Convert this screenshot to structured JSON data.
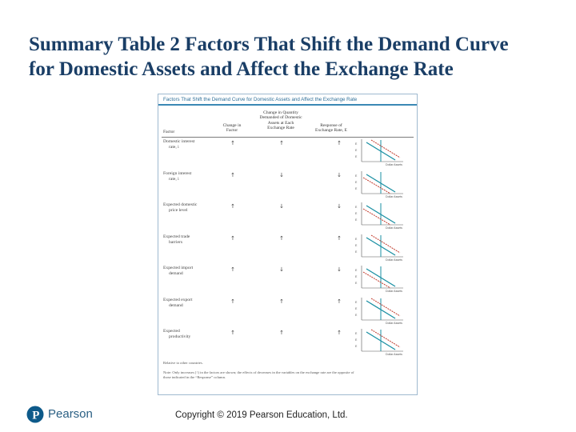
{
  "slide": {
    "title_line1": "Summary Table 2 Factors That Shift the Demand Curve",
    "title_line2": "for Domestic Assets and Affect the Exchange Rate"
  },
  "table": {
    "header_bar": "Factors That Shift the Demand Curve for Domestic Assets and Affect the Exchange Rate",
    "columns": {
      "factor": "Factor",
      "change_line1": "Change in",
      "change_line2": "Factor",
      "quantity_line1": "Change in Quantity",
      "quantity_line2": "Demanded of Domestic",
      "quantity_line3": "Assets at Each",
      "quantity_line4": "Exchange Rate",
      "response_line1": "Response of",
      "response_line2": "Exchange Rate, E"
    },
    "rows": [
      {
        "factor_line1": "Domestic interest",
        "factor_line2": "rate, i",
        "change": "↑",
        "quantity": "↑",
        "response": "↑"
      },
      {
        "factor_line1": "Foreign interest",
        "factor_line2": "rate, i",
        "change": "↑",
        "quantity": "↓",
        "response": "↓"
      },
      {
        "factor_line1": "Expected domestic",
        "factor_line2": "price level",
        "change": "↑",
        "quantity": "↓",
        "response": "↓"
      },
      {
        "factor_line1": "Expected trade",
        "factor_line2": "barriers",
        "change": "↑",
        "quantity": "↑",
        "response": "↑"
      },
      {
        "factor_line1": "Expected import",
        "factor_line2": "demand",
        "change": "↑",
        "quantity": "↓",
        "response": "↓"
      },
      {
        "factor_line1": "Expected export",
        "factor_line2": "demand",
        "change": "↑",
        "quantity": "↑",
        "response": "↑"
      },
      {
        "factor_line1": "Expected",
        "factor_line2": "productivity",
        "change": "↑",
        "quantity": "↑",
        "response": "↑"
      }
    ],
    "graph_axis_label": "Dollar Assets",
    "note1": "Relative to other countries.",
    "note2": "Note: Only increases (↑) in the factors are shown; the effects of decreases in the variables on the exchange rate are the opposite of",
    "note3": "those indicated in the “Response” column."
  },
  "footer": {
    "publisher": "Pearson",
    "copyright": "Copyright © 2019 Pearson Education, Ltd."
  },
  "colors": {
    "title": "#1a3e66",
    "accent": "#3b88b5",
    "curve_old": "#1a8fa3",
    "curve_new": "#c0392b"
  }
}
